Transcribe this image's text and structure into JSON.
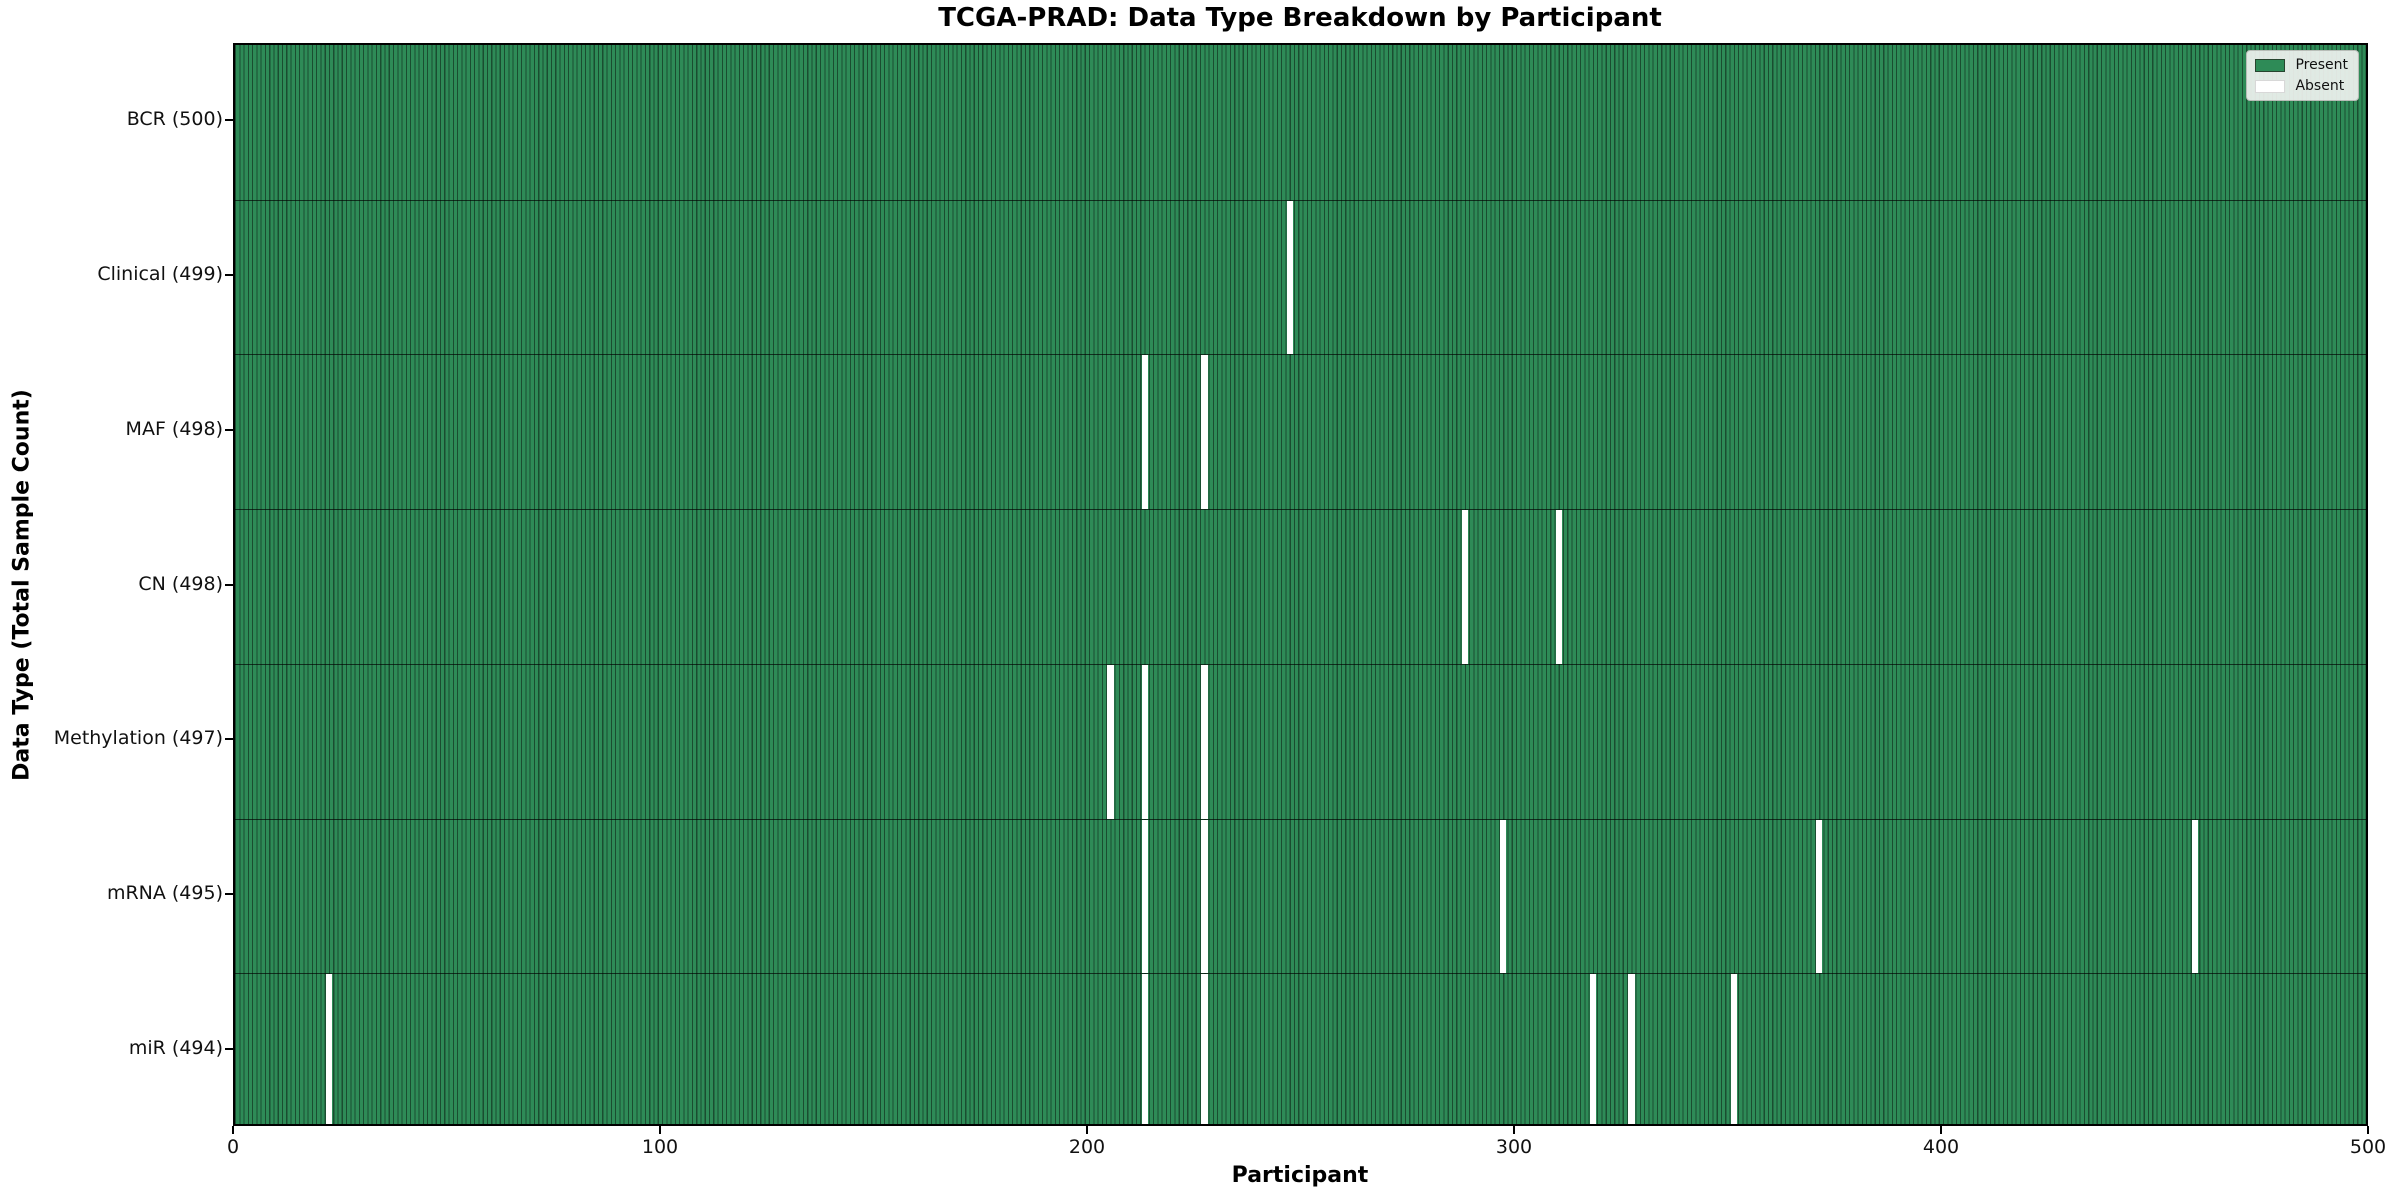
{
  "chart_data": {
    "type": "heatmap",
    "title": "TCGA-PRAD: Data Type Breakdown by Participant",
    "x_axis": {
      "label": "Participant",
      "min": 0,
      "max": 500,
      "ticks": [
        0,
        100,
        200,
        300,
        400,
        500
      ]
    },
    "y_axis_label": "Data Type (Total Sample Count)",
    "cell_states": [
      "Present",
      "Absent"
    ],
    "legend": {
      "present_label": "Present",
      "absent_label": "Absent"
    },
    "rows": [
      {
        "data_type": "BCR",
        "label": "BCR (500)",
        "present_count": 500,
        "absent_participants": []
      },
      {
        "data_type": "Clinical",
        "label": "Clinical (499)",
        "present_count": 499,
        "absent_participants": [
          247
        ]
      },
      {
        "data_type": "MAF",
        "label": "MAF (498)",
        "present_count": 498,
        "absent_participants": [
          213,
          227
        ]
      },
      {
        "data_type": "CN",
        "label": "CN (498)",
        "present_count": 498,
        "absent_participants": [
          288,
          310
        ]
      },
      {
        "data_type": "Methylation",
        "label": "Methylation (497)",
        "present_count": 497,
        "absent_participants": [
          205,
          213,
          227
        ]
      },
      {
        "data_type": "mRNA",
        "label": "mRNA (495)",
        "present_count": 495,
        "absent_participants": [
          213,
          227,
          297,
          371,
          459
        ]
      },
      {
        "data_type": "miR",
        "label": "miR (494)",
        "present_count": 494,
        "absent_participants": [
          22,
          213,
          227,
          318,
          327,
          351
        ]
      }
    ],
    "colors": {
      "present_fill": "#2e8b57",
      "bar_edge": "#1a4d30",
      "absent_fill": "#ffffff",
      "row_boundary": "#26402e",
      "spine": "#000000",
      "legend_background": "#f0f2f0"
    },
    "layout_hints": {
      "grid": "off",
      "legend_position": "upper right",
      "orientation": "horizontal rows, one column per participant"
    }
  }
}
